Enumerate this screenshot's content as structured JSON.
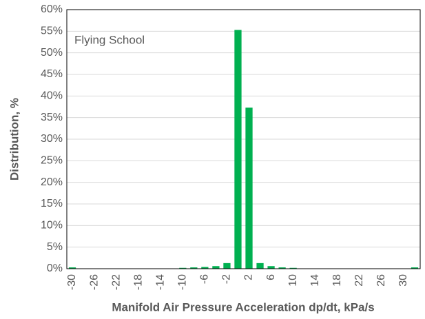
{
  "chart_data": {
    "type": "bar",
    "annotation": "Flying School",
    "xlabel": "Manifold Air Pressure Acceleration dp/dt, kPa/s",
    "ylabel": "Distribution, %",
    "categories": [
      "-30",
      null,
      "-26",
      null,
      "-22",
      null,
      "-18",
      null,
      "-14",
      null,
      "-10",
      null,
      "-6",
      null,
      "-2",
      null,
      "2",
      null,
      "6",
      null,
      "10",
      null,
      "14",
      null,
      "18",
      null,
      "22",
      null,
      "26",
      null,
      "30",
      null
    ],
    "values": [
      0.3,
      0,
      0,
      0,
      0,
      0,
      0,
      0,
      0,
      0,
      0.2,
      0.3,
      0.4,
      0.6,
      1.3,
      55.3,
      37.3,
      1.3,
      0.6,
      0.3,
      0.2,
      0,
      0,
      0,
      0,
      0,
      0,
      0,
      0,
      0,
      0,
      0.3
    ],
    "color": "#00b050",
    "ylim": [
      0,
      60
    ],
    "yticks": [
      {
        "value": 0,
        "label": "0%"
      },
      {
        "value": 5,
        "label": "5%"
      },
      {
        "value": 10,
        "label": "10%"
      },
      {
        "value": 15,
        "label": "15%"
      },
      {
        "value": 20,
        "label": "20%"
      },
      {
        "value": 25,
        "label": "25%"
      },
      {
        "value": 30,
        "label": "30%"
      },
      {
        "value": 35,
        "label": "35%"
      },
      {
        "value": 40,
        "label": "40%"
      },
      {
        "value": 45,
        "label": "45%"
      },
      {
        "value": 50,
        "label": "50%"
      },
      {
        "value": 55,
        "label": "55%"
      },
      {
        "value": 60,
        "label": "60%"
      }
    ],
    "grid": true
  }
}
